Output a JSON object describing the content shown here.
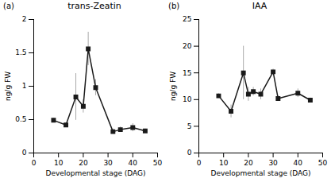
{
  "chart_data": [
    {
      "type": "line",
      "title": "trans-Zeatin",
      "annotation": "(a)",
      "xlabel": "Developmental stage (DAG)",
      "ylabel": "ng/g FW",
      "x": [
        8,
        13,
        17,
        20,
        22,
        25,
        32,
        35,
        40,
        45
      ],
      "values": [
        0.49,
        0.42,
        0.84,
        0.7,
        1.56,
        0.98,
        0.32,
        0.35,
        0.38,
        0.33
      ],
      "error_bars": {
        "values": [
          0.03,
          0.03,
          0.35,
          0.1,
          0.25,
          0.12,
          0.04,
          0.04,
          0.06,
          0.03
        ],
        "color": "#aaaaaa"
      },
      "color": "#1a1a1a",
      "marker": "square",
      "xlim": [
        0,
        50
      ],
      "xticks": [
        0,
        10,
        20,
        30,
        40,
        50
      ],
      "ylim": [
        0,
        2
      ],
      "yticks": [
        0,
        0.5,
        1,
        1.5,
        2
      ]
    },
    {
      "type": "line",
      "title": "IAA",
      "annotation": "(b)",
      "xlabel": "Developmental stage (DAG)",
      "ylabel": "ng/g FW",
      "x": [
        8,
        13,
        18,
        20,
        22,
        25,
        30,
        32,
        40,
        45
      ],
      "values": [
        10.7,
        7.8,
        15.0,
        11.0,
        11.5,
        11.0,
        15.2,
        10.2,
        11.2,
        9.9
      ],
      "error_bars": {
        "values": [
          0.4,
          1.2,
          5.0,
          1.3,
          0.8,
          1.0,
          0.5,
          0.5,
          0.8,
          0.4
        ],
        "color": "#aaaaaa"
      },
      "color": "#1a1a1a",
      "marker": "square",
      "xlim": [
        0,
        50
      ],
      "xticks": [
        0,
        10,
        20,
        30,
        40,
        50
      ],
      "ylim": [
        0,
        25
      ],
      "yticks": [
        0,
        5,
        10,
        15,
        20,
        25
      ]
    }
  ]
}
